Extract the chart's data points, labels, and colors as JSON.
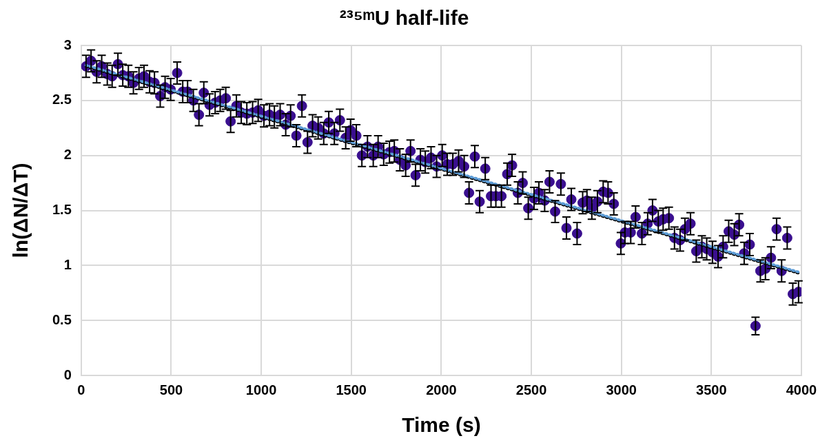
{
  "chart_data": {
    "type": "scatter",
    "title": "²³⁵ᵐU half-life",
    "xlabel": "Time (s)",
    "ylabel": "ln(ΔN/ΔT)",
    "xlim": [
      0,
      4000
    ],
    "xticks": [
      0,
      500,
      1000,
      1500,
      2000,
      2500,
      3000,
      3500,
      4000
    ],
    "ylim": [
      0,
      3
    ],
    "yticks": [
      0,
      0.5,
      1,
      1.5,
      2,
      2.5,
      3
    ],
    "grid": true,
    "legend": false,
    "series": [
      {
        "color": "#3a0f8f",
        "marker": "circle",
        "x": [
          27,
          55,
          86,
          114,
          145,
          172,
          204,
          231,
          262,
          290,
          321,
          349,
          380,
          407,
          439,
          466,
          497,
          533,
          564,
          591,
          623,
          654,
          681,
          713,
          744,
          772,
          803,
          830,
          862,
          889,
          920,
          952,
          983,
          1015,
          1046,
          1073,
          1105,
          1136,
          1163,
          1195,
          1226,
          1257,
          1285,
          1316,
          1347,
          1375,
          1406,
          1437,
          1469,
          1496,
          1528,
          1559,
          1590,
          1622,
          1649,
          1680,
          1712,
          1739,
          1770,
          1802,
          1829,
          1857,
          1884,
          1911,
          1943,
          1974,
          2005,
          2033,
          2064,
          2096,
          2127,
          2154,
          2186,
          2213,
          2244,
          2276,
          2303,
          2334,
          2366,
          2393,
          2425,
          2452,
          2483,
          2515,
          2542,
          2574,
          2601,
          2632,
          2664,
          2695,
          2722,
          2754,
          2785,
          2809,
          2836,
          2867,
          2899,
          2926,
          2958,
          2997,
          3020,
          3052,
          3079,
          3114,
          3146,
          3173,
          3205,
          3232,
          3264,
          3295,
          3326,
          3353,
          3384,
          3416,
          3447,
          3474,
          3506,
          3537,
          3565,
          3596,
          3627,
          3654,
          3682,
          3713,
          3745,
          3772,
          3800,
          3831,
          3862,
          3890,
          3921,
          3952,
          3984
        ],
        "values": [
          2.81,
          2.86,
          2.76,
          2.81,
          2.74,
          2.72,
          2.83,
          2.73,
          2.72,
          2.66,
          2.7,
          2.72,
          2.67,
          2.66,
          2.54,
          2.62,
          2.6,
          2.75,
          2.58,
          2.58,
          2.5,
          2.37,
          2.57,
          2.46,
          2.48,
          2.5,
          2.52,
          2.31,
          2.45,
          2.39,
          2.38,
          2.39,
          2.41,
          2.36,
          2.37,
          2.35,
          2.37,
          2.28,
          2.36,
          2.18,
          2.45,
          2.12,
          2.27,
          2.25,
          2.2,
          2.3,
          2.2,
          2.32,
          2.16,
          2.23,
          2.18,
          2.0,
          2.08,
          2.0,
          2.08,
          2.01,
          2.03,
          2.04,
          1.96,
          1.91,
          2.04,
          1.82,
          1.96,
          1.94,
          1.98,
          1.9,
          2.0,
          1.92,
          1.92,
          1.95,
          1.9,
          1.66,
          1.99,
          1.58,
          1.88,
          1.63,
          1.63,
          1.63,
          1.83,
          1.91,
          1.66,
          1.75,
          1.52,
          1.61,
          1.66,
          1.59,
          1.76,
          1.49,
          1.74,
          1.34,
          1.6,
          1.29,
          1.57,
          1.59,
          1.52,
          1.58,
          1.67,
          1.66,
          1.56,
          1.2,
          1.3,
          1.3,
          1.44,
          1.29,
          1.38,
          1.5,
          1.4,
          1.42,
          1.43,
          1.25,
          1.23,
          1.33,
          1.38,
          1.13,
          1.17,
          1.15,
          1.12,
          1.08,
          1.17,
          1.31,
          1.28,
          1.37,
          1.11,
          1.19,
          0.45,
          0.95,
          0.97,
          1.07,
          1.33,
          0.95,
          1.25,
          0.74,
          0.76
        ],
        "errors": [
          0.1,
          0.1,
          0.1,
          0.1,
          0.1,
          0.1,
          0.1,
          0.1,
          0.1,
          0.1,
          0.1,
          0.1,
          0.1,
          0.1,
          0.1,
          0.1,
          0.1,
          0.1,
          0.1,
          0.1,
          0.1,
          0.1,
          0.1,
          0.1,
          0.1,
          0.1,
          0.1,
          0.1,
          0.1,
          0.1,
          0.1,
          0.1,
          0.1,
          0.1,
          0.1,
          0.1,
          0.1,
          0.1,
          0.1,
          0.1,
          0.1,
          0.1,
          0.1,
          0.1,
          0.1,
          0.1,
          0.1,
          0.1,
          0.1,
          0.1,
          0.1,
          0.1,
          0.1,
          0.1,
          0.1,
          0.1,
          0.1,
          0.1,
          0.1,
          0.1,
          0.1,
          0.1,
          0.1,
          0.1,
          0.1,
          0.1,
          0.1,
          0.1,
          0.1,
          0.1,
          0.1,
          0.1,
          0.1,
          0.1,
          0.1,
          0.1,
          0.1,
          0.1,
          0.1,
          0.1,
          0.1,
          0.1,
          0.1,
          0.1,
          0.1,
          0.1,
          0.1,
          0.1,
          0.1,
          0.1,
          0.1,
          0.1,
          0.1,
          0.1,
          0.1,
          0.1,
          0.1,
          0.1,
          0.1,
          0.1,
          0.1,
          0.1,
          0.1,
          0.1,
          0.1,
          0.1,
          0.1,
          0.1,
          0.1,
          0.1,
          0.1,
          0.1,
          0.1,
          0.1,
          0.1,
          0.1,
          0.1,
          0.1,
          0.1,
          0.1,
          0.1,
          0.1,
          0.1,
          0.1,
          0.08,
          0.1,
          0.1,
          0.1,
          0.1,
          0.1,
          0.1,
          0.1,
          0.1
        ]
      },
      {
        "type": "line",
        "color": "#5b9bd5",
        "line_style": "dotted",
        "marker": "none",
        "x": [
          27,
          3984
        ],
        "values": [
          2.82,
          0.94
        ]
      },
      {
        "type": "line",
        "color": "#000000",
        "line_style": "dotted",
        "marker": "none",
        "x": [
          27,
          3984
        ],
        "values": [
          2.81,
          0.93
        ]
      }
    ]
  }
}
